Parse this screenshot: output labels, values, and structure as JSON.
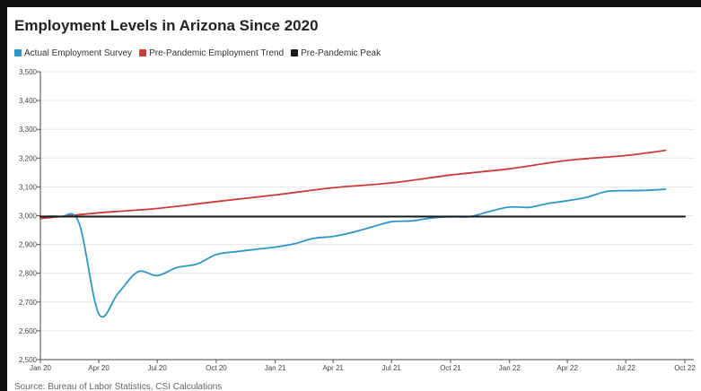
{
  "chart_data": {
    "type": "line",
    "title": "Employment Levels in Arizona Since 2020",
    "xlabel": "",
    "ylabel": "",
    "ylim": [
      2500,
      3500
    ],
    "xlim": [
      "2020-01-01",
      "2022-10-01"
    ],
    "yticks": [
      2500,
      2600,
      2700,
      2800,
      2900,
      3000,
      3100,
      3200,
      3300,
      3400,
      3500
    ],
    "ytick_labels": [
      "2,500",
      "2,600",
      "2,700",
      "2,800",
      "2,900",
      "3,000",
      "3,100",
      "3,200",
      "3,300",
      "3,400",
      "3,500"
    ],
    "xticks": [
      "2020-01-01",
      "2020-04-01",
      "2020-07-01",
      "2020-10-01",
      "2021-01-01",
      "2021-04-01",
      "2021-07-01",
      "2021-10-01",
      "2022-01-01",
      "2022-04-01",
      "2022-07-01",
      "2022-10-01"
    ],
    "xtick_labels": [
      "Jan 20",
      "Apr 20",
      "Jul 20",
      "Oct 20",
      "Jan 21",
      "Apr 21",
      "Jul 21",
      "Oct 21",
      "Jan 22",
      "Apr 22",
      "Jul 22",
      "Oct 22"
    ],
    "grid": "horizontal",
    "legend_position": "top-left",
    "source": "Source: Bureau of Labor Statistics, CSI Calculations",
    "series": [
      {
        "name": "Actual Employment Survey",
        "color": "#2f96c8",
        "x": [
          "2020-01-01",
          "2020-02-01",
          "2020-03-01",
          "2020-04-01",
          "2020-05-01",
          "2020-06-01",
          "2020-07-01",
          "2020-08-01",
          "2020-09-01",
          "2020-10-01",
          "2020-11-01",
          "2020-12-01",
          "2021-01-01",
          "2021-02-01",
          "2021-03-01",
          "2021-04-01",
          "2021-05-01",
          "2021-06-01",
          "2021-07-01",
          "2021-08-01",
          "2021-09-01",
          "2021-10-01",
          "2021-11-01",
          "2021-12-01",
          "2022-01-01",
          "2022-02-01",
          "2022-03-01",
          "2022-04-01",
          "2022-05-01",
          "2022-06-01",
          "2022-07-01",
          "2022-08-01",
          "2022-09-01"
        ],
        "values": [
          2997,
          2997,
          2976,
          2659,
          2730,
          2805,
          2792,
          2820,
          2832,
          2865,
          2875,
          2883,
          2891,
          2903,
          2921,
          2928,
          2942,
          2961,
          2979,
          2982,
          2992,
          2996,
          2997,
          3015,
          3030,
          3029,
          3042,
          3052,
          3064,
          3084,
          3087,
          3088,
          3092
        ]
      },
      {
        "name": "Pre-Pandemic Employment Trend",
        "color": "#cc3b3b",
        "x": [
          "2020-01-01",
          "2020-04-01",
          "2020-07-01",
          "2020-10-01",
          "2021-01-01",
          "2021-04-01",
          "2021-07-01",
          "2021-10-01",
          "2022-01-01",
          "2022-04-01",
          "2022-07-01",
          "2022-09-01"
        ],
        "values": [
          2990,
          3010,
          3025,
          3049,
          3072,
          3097,
          3114,
          3141,
          3163,
          3192,
          3209,
          3227
        ]
      },
      {
        "name": "Pre-Pandemic Peak",
        "color": "#1a1a1a",
        "x": [
          "2020-01-01",
          "2022-10-01"
        ],
        "values": [
          2997,
          2997
        ]
      }
    ]
  }
}
